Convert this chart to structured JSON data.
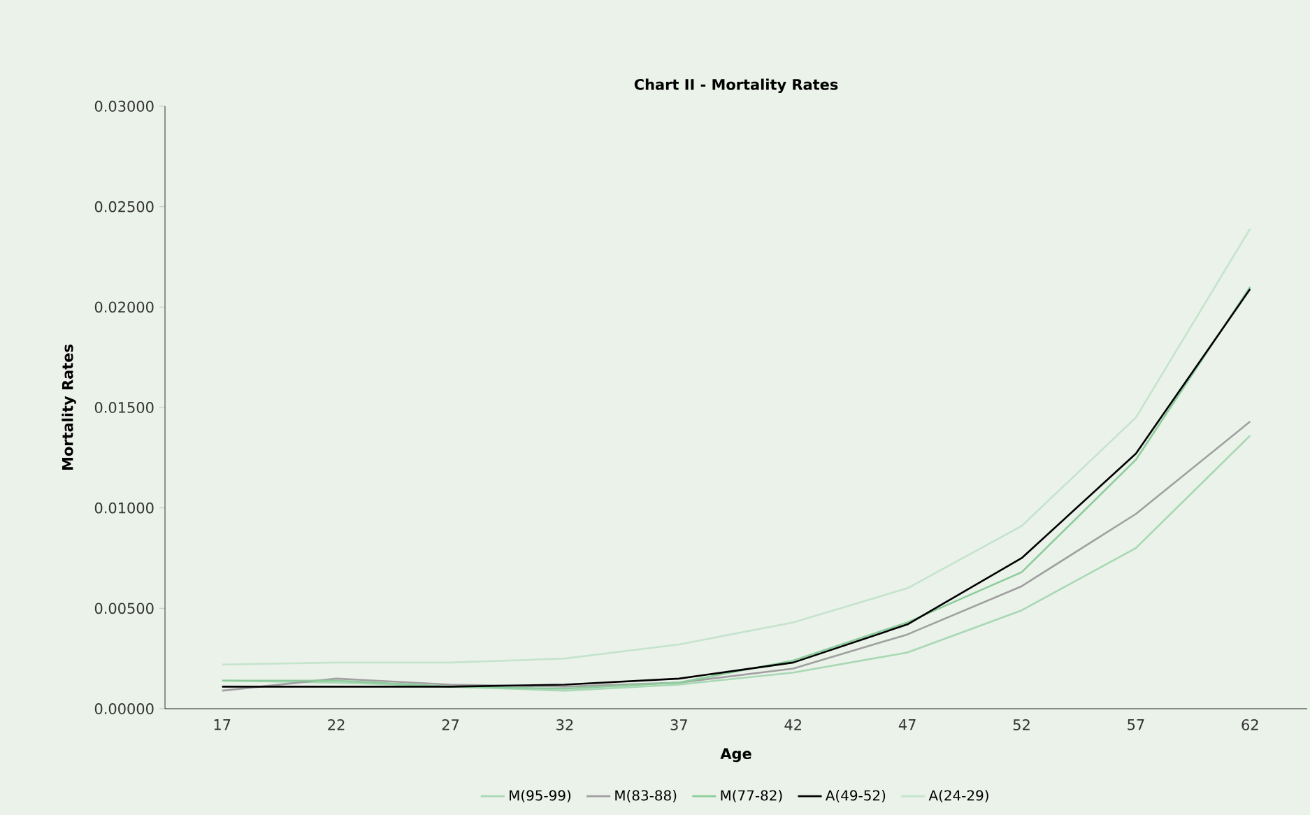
{
  "chart_data": {
    "type": "line",
    "title": "Chart II -    Mortality Rates",
    "xlabel": "Age",
    "ylabel": "Mortality Rates",
    "categories": [
      "17",
      "22",
      "27",
      "32",
      "37",
      "42",
      "47",
      "52",
      "57",
      "62"
    ],
    "series": [
      {
        "name": "M(95-99)",
        "color": "#a8d8b4",
        "values": [
          0.0014,
          0.0013,
          0.0011,
          0.0009,
          0.0012,
          0.0018,
          0.0028,
          0.0049,
          0.008,
          0.0136
        ]
      },
      {
        "name": "M(83-88)",
        "color": "#a0a0a0",
        "values": [
          0.0009,
          0.0015,
          0.0012,
          0.0011,
          0.0013,
          0.002,
          0.0037,
          0.0061,
          0.0097,
          0.0143
        ]
      },
      {
        "name": "M(77-82)",
        "color": "#8ccc9c",
        "values": [
          0.0014,
          0.0014,
          0.0011,
          0.001,
          0.0013,
          0.0024,
          0.0043,
          0.0068,
          0.0124,
          0.021
        ]
      },
      {
        "name": "A(49-52)",
        "color": "#000000",
        "values": [
          0.0011,
          0.0011,
          0.0011,
          0.0012,
          0.0015,
          0.0023,
          0.0042,
          0.0075,
          0.0127,
          0.0209
        ]
      },
      {
        "name": "A(24-29)",
        "color": "#c4e4cc",
        "values": [
          0.0022,
          0.0023,
          0.0023,
          0.0025,
          0.0032,
          0.0043,
          0.006,
          0.0091,
          0.0145,
          0.0239
        ]
      }
    ],
    "ylim": [
      0,
      0.03
    ],
    "yticks": [
      {
        "value": 0,
        "label": "0.00000"
      },
      {
        "value": 0.005,
        "label": "0.00500"
      },
      {
        "value": 0.01,
        "label": "0.01000"
      },
      {
        "value": 0.015,
        "label": "0.01500"
      },
      {
        "value": 0.02,
        "label": "0.02000"
      },
      {
        "value": 0.025,
        "label": "0.02500"
      },
      {
        "value": 0.03,
        "label": "0.03000"
      }
    ],
    "grid": false,
    "legend": "bottom",
    "marker": "none",
    "line_style": "solid"
  }
}
